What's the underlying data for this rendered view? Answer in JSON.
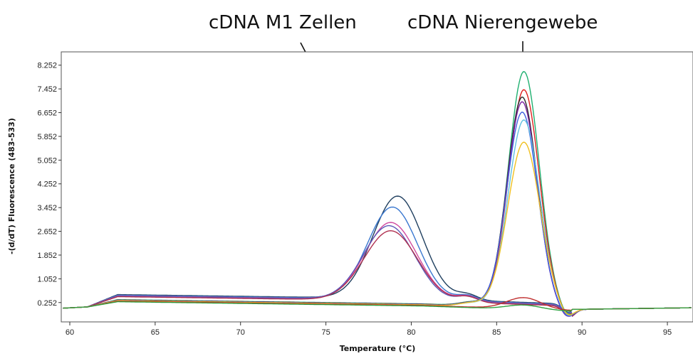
{
  "chart_data": {
    "type": "line",
    "title": "",
    "xlabel": "Temperature (°C)",
    "ylabel": "-(d/dT) Fluorescence (483-533)",
    "xlim": [
      59.5,
      96.5
    ],
    "ylim": [
      -0.4,
      8.7
    ],
    "x_ticks": [
      60,
      65,
      70,
      75,
      80,
      85,
      90,
      95
    ],
    "y_ticks": [
      0.252,
      1.052,
      1.852,
      2.652,
      3.452,
      4.252,
      5.052,
      5.852,
      6.652,
      7.452,
      8.252
    ],
    "x_tick_labels": [
      "60",
      "65",
      "70",
      "75",
      "80",
      "85",
      "90",
      "95"
    ],
    "y_tick_labels": [
      "0.252",
      "1.052",
      "1.852",
      "2.652",
      "3.452",
      "4.252",
      "5.052",
      "5.852",
      "6.652",
      "7.452",
      "8.252"
    ],
    "grid": false,
    "annotations": [
      {
        "text": "cDNA M1 Zellen",
        "arrow_to": {
          "x": 77.8,
          "y": 4.05
        }
      },
      {
        "text": "cDNA Nierengewebe",
        "arrow_to": {
          "x": 86.5,
          "y": 7.6
        }
      }
    ],
    "series": [
      {
        "color": "#1f3f5f",
        "type": "m1",
        "peak_x": 79.2,
        "peak_y": 3.45,
        "base": 0.52,
        "sigma": 1.45
      },
      {
        "color": "#3a78d0",
        "type": "m1",
        "peak_x": 78.9,
        "peak_y": 3.1,
        "base": 0.5,
        "sigma": 1.45
      },
      {
        "color": "#d04aa0",
        "type": "m1",
        "peak_x": 78.8,
        "peak_y": 2.6,
        "base": 0.48,
        "sigma": 1.5
      },
      {
        "color": "#5a58b8",
        "type": "m1",
        "peak_x": 78.7,
        "peak_y": 2.5,
        "base": 0.47,
        "sigma": 1.5
      },
      {
        "color": "#b03050",
        "type": "m1",
        "peak_x": 78.8,
        "peak_y": 2.35,
        "base": 0.45,
        "sigma": 1.55
      },
      {
        "color": "#20b070",
        "type": "kidney",
        "peak_x": 86.6,
        "peak_y": 7.95,
        "base": 0.35,
        "sigma": 0.9
      },
      {
        "color": "#e02020",
        "type": "kidney",
        "peak_x": 86.6,
        "peak_y": 7.35,
        "base": 0.34,
        "sigma": 0.9
      },
      {
        "color": "#2a2a2a",
        "type": "kidney",
        "peak_x": 86.5,
        "peak_y": 7.1,
        "base": 0.34,
        "sigma": 0.88
      },
      {
        "color": "#7a20a0",
        "type": "kidney",
        "peak_x": 86.5,
        "peak_y": 6.95,
        "base": 0.33,
        "sigma": 0.88
      },
      {
        "color": "#4060e0",
        "type": "kidney",
        "peak_x": 86.5,
        "peak_y": 6.6,
        "base": 0.33,
        "sigma": 0.9
      },
      {
        "color": "#60c0e0",
        "type": "kidney",
        "peak_x": 86.6,
        "peak_y": 6.35,
        "base": 0.32,
        "sigma": 0.92
      },
      {
        "color": "#f0c020",
        "type": "kidney",
        "peak_x": 86.6,
        "peak_y": 5.6,
        "base": 0.32,
        "sigma": 0.95
      },
      {
        "color": "#c03030",
        "type": "flat",
        "peak_x": 86.6,
        "peak_y": 0.38,
        "base": 0.3,
        "sigma": 1.0
      },
      {
        "color": "#30a040",
        "type": "flat",
        "peak_x": 86.6,
        "peak_y": 0.15,
        "base": 0.28,
        "sigma": 1.0
      }
    ]
  }
}
